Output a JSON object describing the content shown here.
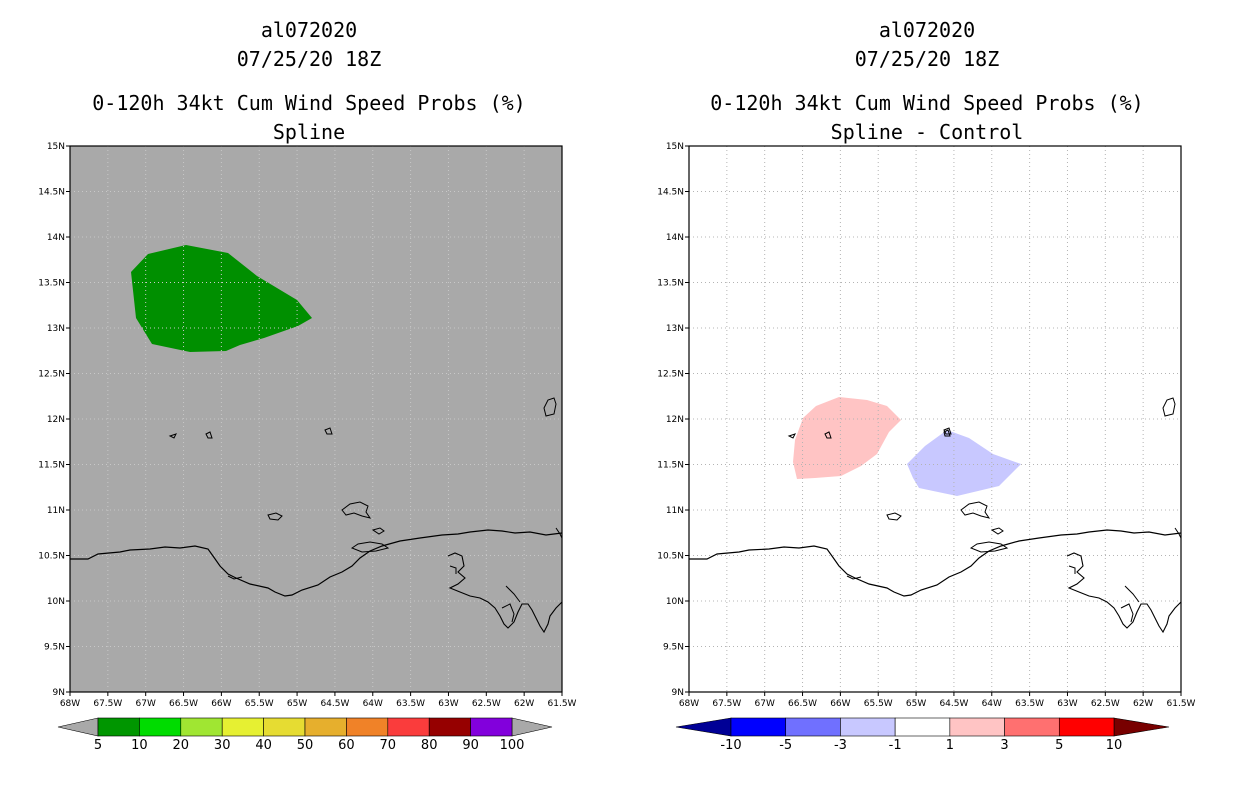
{
  "left_panel": {
    "storm_id": "al072020",
    "datetime": "07/25/20 18Z",
    "product": "0-120h 34kt Cum Wind Speed Probs (%)",
    "method": "Spline",
    "background_color": "#a9a9a9",
    "field_color": "#008f00"
  },
  "right_panel": {
    "storm_id": "al072020",
    "datetime": "07/25/20 18Z",
    "product": "0-120h 34kt Cum Wind Speed Probs (%)",
    "method": "Spline - Control",
    "background_color": "#ffffff",
    "positive_color": "#ffc4c4",
    "negative_color": "#c8c8ff"
  },
  "axes": {
    "lat_labels": [
      "15N",
      "14.5N",
      "14N",
      "13.5N",
      "13N",
      "12.5N",
      "12N",
      "11.5N",
      "11N",
      "10.5N",
      "10N",
      "9.5N",
      "9N"
    ],
    "lon_labels": [
      "68W",
      "67.5W",
      "67W",
      "66.5W",
      "66W",
      "65.5W",
      "65W",
      "64.5W",
      "64W",
      "63.5W",
      "63W",
      "62.5W",
      "62W",
      "61.5W"
    ]
  },
  "legend_left": {
    "labels": [
      "5",
      "10",
      "20",
      "30",
      "40",
      "50",
      "60",
      "70",
      "80",
      "90",
      "100"
    ],
    "colors": [
      "#009600",
      "#00dc00",
      "#a0e632",
      "#e6f032",
      "#e6dc32",
      "#e6af2d",
      "#f08228",
      "#fa3c3c",
      "#960000",
      "#8200dc"
    ],
    "end_color": "#a9a9a9"
  },
  "legend_right": {
    "labels": [
      "-10",
      "-5",
      "-3",
      "-1",
      "1",
      "3",
      "5",
      "10"
    ],
    "colors": [
      "#0000ff",
      "#7070ff",
      "#c8c8ff",
      "#ffffff",
      "#ffc4c4",
      "#ff7070",
      "#ff0000"
    ],
    "low_end_color": "#000096",
    "high_end_color": "#780000"
  }
}
